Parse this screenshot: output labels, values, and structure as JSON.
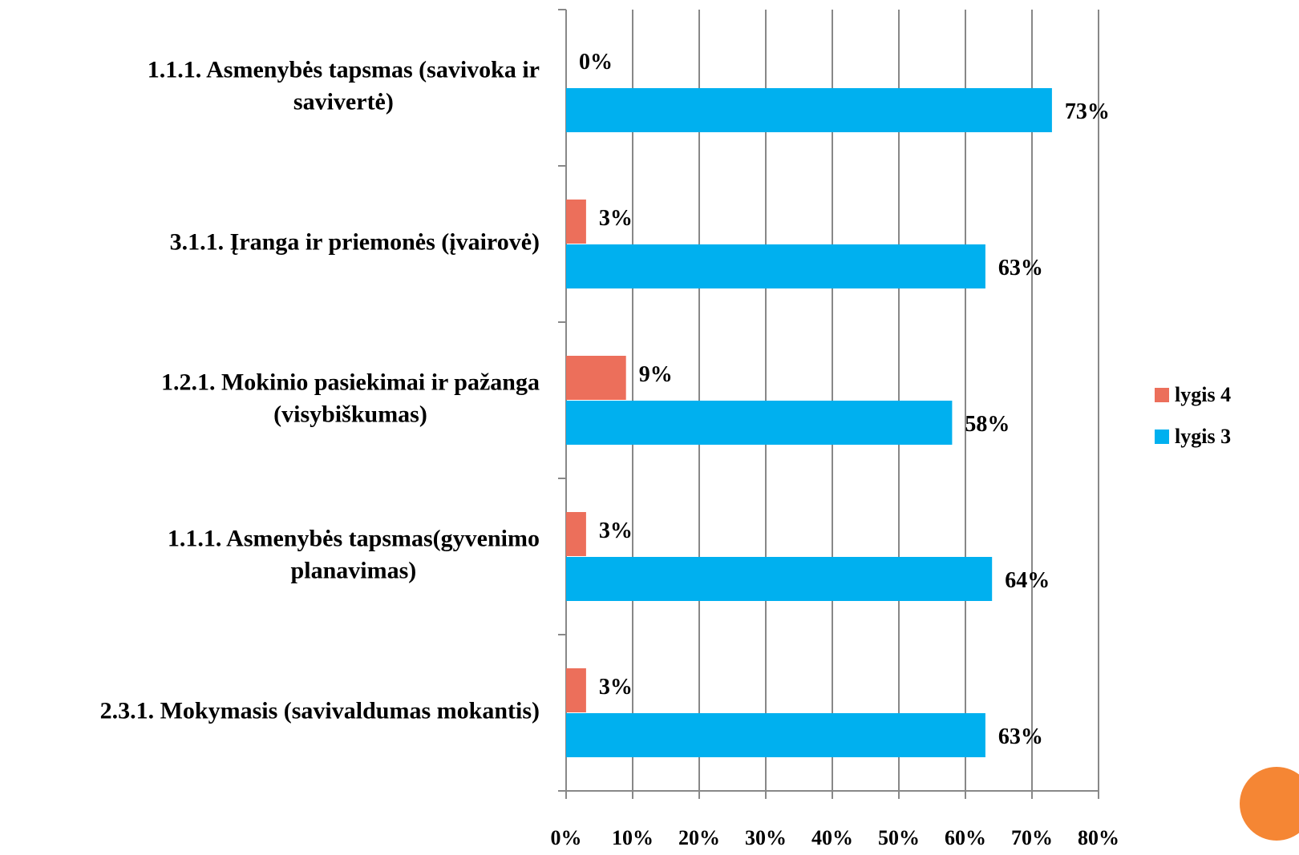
{
  "chart_data": {
    "type": "bar",
    "orientation": "horizontal",
    "categories": [
      [
        "1.1.1. Asmenybės tapsmas (savivoka ir",
        "savivertė)"
      ],
      [
        "3.1.1. Įranga ir priemonės (įvairovė)"
      ],
      [
        "1.2.1.  Mokinio pasiekimai ir pažanga",
        "(visybiškumas)"
      ],
      [
        "1.1.1. Asmenybės tapsmas(gyvenimo",
        "planavimas)"
      ],
      [
        "2.3.1. Mokymasis (savivaldumas mokantis)"
      ]
    ],
    "series": [
      {
        "name": "lygis 4",
        "color": "#ec6f5b",
        "values": [
          0,
          3,
          9,
          3,
          3
        ],
        "value_labels": [
          "0%",
          "3%",
          "9%",
          "3%",
          "3%"
        ]
      },
      {
        "name": "lygis 3",
        "color": "#00b0ef",
        "values": [
          73,
          63,
          58,
          64,
          63
        ],
        "value_labels": [
          "73%",
          "63%",
          "58%",
          "64%",
          "63%"
        ]
      }
    ],
    "xlim": [
      0,
      80
    ],
    "xticks": [
      {
        "value": 0,
        "label": "0%"
      },
      {
        "value": 10,
        "label": "10%"
      },
      {
        "value": 20,
        "label": "20%"
      },
      {
        "value": 30,
        "label": "30%"
      },
      {
        "value": 40,
        "label": "40%"
      },
      {
        "value": 50,
        "label": "50%"
      },
      {
        "value": 60,
        "label": "60%"
      },
      {
        "value": 70,
        "label": "70%"
      },
      {
        "value": 80,
        "label": "80%"
      }
    ],
    "grid": true,
    "legend": "right"
  }
}
